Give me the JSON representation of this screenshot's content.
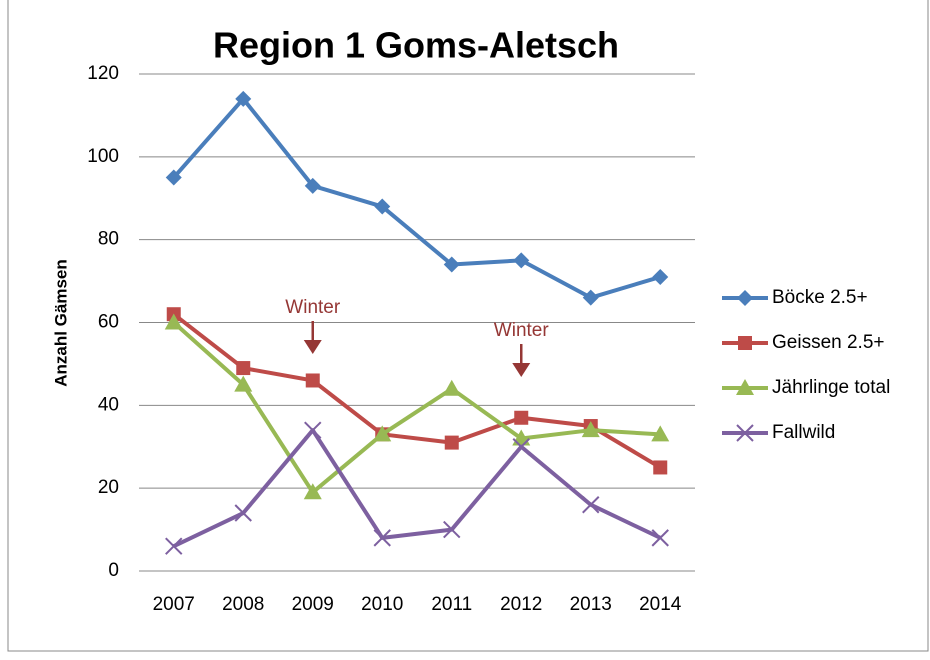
{
  "chart_data": {
    "type": "line",
    "title": "Region 1 Goms-Aletsch",
    "y_label": "Anzahl Gämsen",
    "categories": [
      "2007",
      "2008",
      "2009",
      "2010",
      "2011",
      "2012",
      "2013",
      "2014"
    ],
    "series": [
      {
        "name": "Böcke 2.5+",
        "color": "#4a7ebb",
        "marker": "diamond",
        "values": [
          95,
          114,
          93,
          88,
          74,
          75,
          66,
          71
        ]
      },
      {
        "name": "Geissen 2.5+",
        "color": "#be4b48",
        "marker": "square",
        "values": [
          62,
          49,
          46,
          33,
          31,
          37,
          35,
          25
        ]
      },
      {
        "name": "Jährlinge total",
        "color": "#98b954",
        "marker": "triangle",
        "values": [
          60,
          45,
          19,
          33,
          44,
          32,
          34,
          33
        ]
      },
      {
        "name": "Fallwild",
        "color": "#7d60a0",
        "marker": "x",
        "values": [
          6,
          14,
          34,
          8,
          10,
          30,
          16,
          8
        ]
      }
    ],
    "ylim": [
      0,
      120
    ],
    "yticks": [
      0,
      20,
      40,
      60,
      80,
      100,
      120
    ],
    "grid": true,
    "legend": "right",
    "annotations": [
      {
        "text": "Winter",
        "x": "2009",
        "color": "#953735"
      },
      {
        "text": "Winter",
        "x": "2012",
        "color": "#953735"
      }
    ]
  }
}
